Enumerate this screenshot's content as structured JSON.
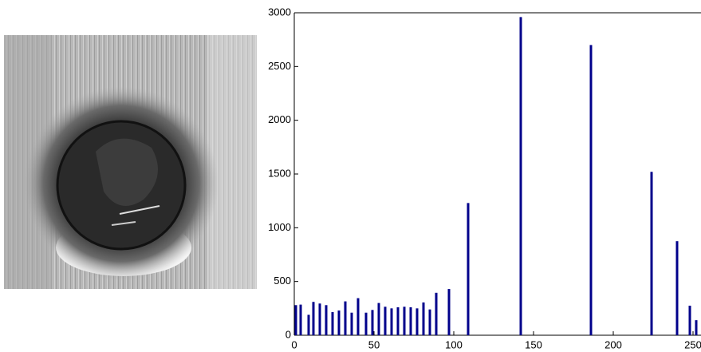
{
  "chart_data": {
    "type": "bar",
    "x": [
      1,
      4,
      9,
      12,
      16,
      20,
      24,
      28,
      32,
      36,
      40,
      45,
      49,
      53,
      57,
      61,
      65,
      69,
      73,
      77,
      81,
      85,
      89,
      97,
      109,
      142,
      186,
      224,
      240,
      248,
      252
    ],
    "values": [
      280,
      285,
      190,
      310,
      295,
      280,
      215,
      230,
      315,
      210,
      345,
      210,
      235,
      300,
      265,
      250,
      260,
      265,
      260,
      250,
      305,
      240,
      395,
      430,
      1230,
      2960,
      2700,
      1520,
      875,
      275,
      140
    ],
    "color": "#00008b",
    "xlim": [
      0,
      255
    ],
    "xticks": [
      0,
      50,
      100,
      150,
      200,
      250
    ],
    "ylim": [
      0,
      3000
    ],
    "yticks": [
      0,
      500,
      1000,
      1500,
      2000,
      2500,
      3000
    ]
  }
}
